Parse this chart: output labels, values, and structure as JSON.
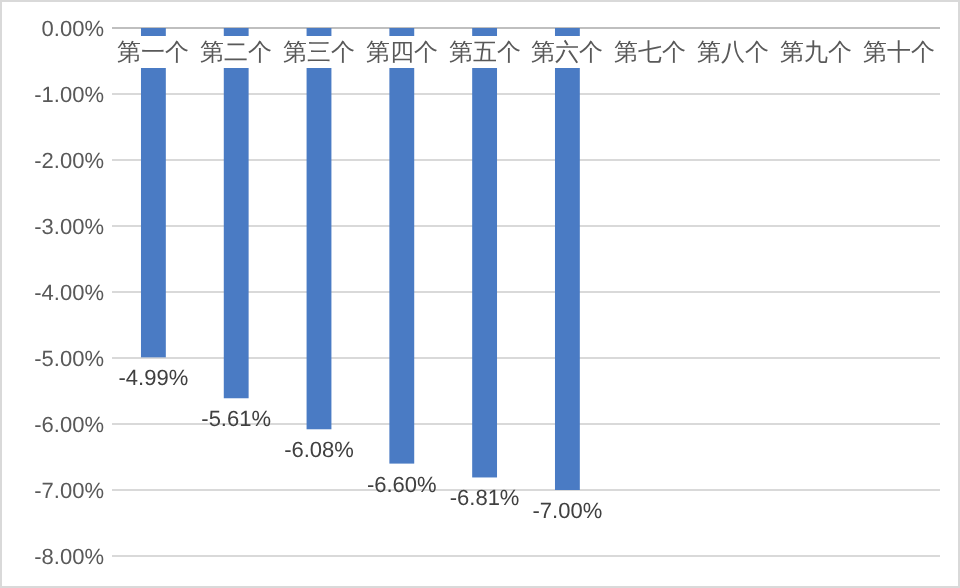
{
  "chart_data": {
    "type": "bar",
    "categories": [
      "第一个",
      "第二个",
      "第三个",
      "第四个",
      "第五个",
      "第六个",
      "第七个",
      "第八个",
      "第九个",
      "第十个"
    ],
    "values": [
      -4.99,
      -5.61,
      -6.08,
      -6.6,
      -6.81,
      -7.0,
      null,
      null,
      null,
      null
    ],
    "value_labels": [
      "-4.99%",
      "-5.61%",
      "-6.08%",
      "-6.60%",
      "-6.81%",
      "-7.00%",
      null,
      null,
      null,
      null
    ],
    "color": "#4a7bc4",
    "ylim": [
      -8,
      0
    ],
    "yticks": [
      {
        "value": 0,
        "label": "0.00%"
      },
      {
        "value": -1,
        "label": "-1.00%"
      },
      {
        "value": -2,
        "label": "-2.00%"
      },
      {
        "value": -3,
        "label": "-3.00%"
      },
      {
        "value": -4,
        "label": "-4.00%"
      },
      {
        "value": -5,
        "label": "-5.00%"
      },
      {
        "value": -6,
        "label": "-6.00%"
      },
      {
        "value": -7,
        "label": "-7.00%"
      },
      {
        "value": -8,
        "label": "-8.00%"
      }
    ],
    "grid": "y"
  }
}
